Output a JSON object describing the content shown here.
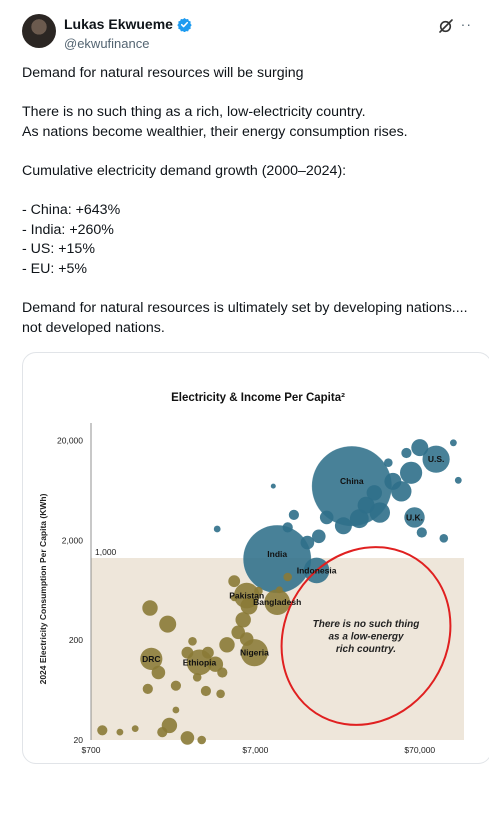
{
  "author": {
    "display_name": "Lukas Ekwueme",
    "handle": "@ekwufinance",
    "verified": true
  },
  "header_icons": [
    "grok-icon",
    "more-icon"
  ],
  "more_label": "··",
  "tweet": {
    "lines": [
      "Demand for natural resources will be surging",
      "",
      "There is no such thing as a rich, low-electricity country.",
      "As nations become wealthier, their energy consumption rises.",
      "",
      "Cumulative electricity demand growth (2000–2024):",
      "",
      "- China: +643%",
      "- India: +260%",
      "- US: +15%",
      "- EU: +5%",
      "",
      "Demand for natural resources is ultimately set by developing nations....",
      "not developed nations."
    ]
  },
  "chart_data": {
    "type": "scatter",
    "title": "Electricity & Income Per Capita²",
    "xlabel": "",
    "ylabel": "2024 Electricity Consumption  Per Capita (KWh)",
    "x_scale": "log",
    "y_scale": "log",
    "xlim": [
      700,
      130000
    ],
    "ylim": [
      20,
      30000
    ],
    "x_ticks": [
      {
        "value": 700,
        "label": "$700"
      },
      {
        "value": 7000,
        "label": "$7,000"
      },
      {
        "value": 70000,
        "label": "$70,000"
      }
    ],
    "y_ticks": [
      {
        "value": 20,
        "label": "20"
      },
      {
        "value": 200,
        "label": "200"
      },
      {
        "value": 2000,
        "label": "2,000"
      },
      {
        "value": 20000,
        "label": "20,000"
      }
    ],
    "shaded_region": {
      "x_from": 700,
      "x_to": 130000,
      "y_from": 20,
      "y_to": 1000,
      "label": "1,000"
    },
    "annotation": {
      "lines": [
        "There is no such thing",
        "as a low-energy",
        "rich country."
      ],
      "color": "#e02020"
    },
    "colors": {
      "developing": "#8a7a36",
      "developed": "#2f6f8a",
      "shade": "#eee6da"
    },
    "labeled_points": [
      {
        "label": "China",
        "x": 27000,
        "y": 7000,
        "size": 4.7
      },
      {
        "label": "India",
        "x": 9500,
        "y": 1300,
        "size": 4.0
      },
      {
        "label": "U.S.",
        "x": 88000,
        "y": 13000,
        "size": 1.6
      },
      {
        "label": "U.K.",
        "x": 65000,
        "y": 3400,
        "size": 1.2
      },
      {
        "label": "Indonesia",
        "x": 16500,
        "y": 1000,
        "size": 1.5
      },
      {
        "label": "Bangladesh",
        "x": 9500,
        "y": 480,
        "size": 1.5
      },
      {
        "label": "Pakistan",
        "x": 6200,
        "y": 560,
        "size": 1.5
      },
      {
        "label": "Nigeria",
        "x": 6900,
        "y": 150,
        "size": 1.6
      },
      {
        "label": "Ethiopia",
        "x": 3200,
        "y": 120,
        "size": 1.5
      },
      {
        "label": "DRC",
        "x": 1630,
        "y": 130,
        "size": 1.3
      }
    ],
    "other_points": [
      {
        "x": 62000,
        "y": 9500,
        "size": 1.3
      },
      {
        "x": 48000,
        "y": 7800,
        "size": 1.0
      },
      {
        "x": 54000,
        "y": 6200,
        "size": 1.2
      },
      {
        "x": 40000,
        "y": 3800,
        "size": 1.2
      },
      {
        "x": 33000,
        "y": 4500,
        "size": 1.0
      },
      {
        "x": 30000,
        "y": 3300,
        "size": 1.1
      },
      {
        "x": 24000,
        "y": 2800,
        "size": 1.0
      },
      {
        "x": 19000,
        "y": 3400,
        "size": 0.8
      },
      {
        "x": 17000,
        "y": 2200,
        "size": 0.8
      },
      {
        "x": 14500,
        "y": 1900,
        "size": 0.8
      },
      {
        "x": 12000,
        "y": 3600,
        "size": 0.6
      },
      {
        "x": 11000,
        "y": 2700,
        "size": 0.6
      },
      {
        "x": 72000,
        "y": 2400,
        "size": 0.6
      },
      {
        "x": 98000,
        "y": 2100,
        "size": 0.5
      },
      {
        "x": 70000,
        "y": 17000,
        "size": 1.0
      },
      {
        "x": 58000,
        "y": 15000,
        "size": 0.6
      },
      {
        "x": 37000,
        "y": 6000,
        "size": 0.9
      },
      {
        "x": 45000,
        "y": 12000,
        "size": 0.5
      },
      {
        "x": 9000,
        "y": 7000,
        "size": 0.3
      },
      {
        "x": 120000,
        "y": 8000,
        "size": 0.4
      },
      {
        "x": 112000,
        "y": 19000,
        "size": 0.4
      },
      {
        "x": 4100,
        "y": 2600,
        "size": 0.4
      },
      {
        "x": 5200,
        "y": 780,
        "size": 0.7
      },
      {
        "x": 6400,
        "y": 440,
        "size": 1.0
      },
      {
        "x": 5900,
        "y": 320,
        "size": 0.9
      },
      {
        "x": 5500,
        "y": 240,
        "size": 0.8
      },
      {
        "x": 4700,
        "y": 180,
        "size": 0.9
      },
      {
        "x": 6200,
        "y": 205,
        "size": 0.8
      },
      {
        "x": 4000,
        "y": 115,
        "size": 0.9
      },
      {
        "x": 3600,
        "y": 150,
        "size": 0.7
      },
      {
        "x": 4400,
        "y": 95,
        "size": 0.6
      },
      {
        "x": 3100,
        "y": 85,
        "size": 0.5
      },
      {
        "x": 2700,
        "y": 150,
        "size": 0.7
      },
      {
        "x": 1800,
        "y": 95,
        "size": 0.8
      },
      {
        "x": 2300,
        "y": 70,
        "size": 0.6
      },
      {
        "x": 1600,
        "y": 420,
        "size": 0.9
      },
      {
        "x": 2050,
        "y": 290,
        "size": 1.0
      },
      {
        "x": 1550,
        "y": 65,
        "size": 0.6
      },
      {
        "x": 3500,
        "y": 62,
        "size": 0.6
      },
      {
        "x": 4300,
        "y": 58,
        "size": 0.5
      },
      {
        "x": 2900,
        "y": 195,
        "size": 0.5
      },
      {
        "x": 2100,
        "y": 28,
        "size": 0.9
      },
      {
        "x": 1900,
        "y": 24,
        "size": 0.6
      },
      {
        "x": 2700,
        "y": 21,
        "size": 0.8
      },
      {
        "x": 3300,
        "y": 20,
        "size": 0.5
      },
      {
        "x": 820,
        "y": 25,
        "size": 0.6
      },
      {
        "x": 1050,
        "y": 24,
        "size": 0.4
      },
      {
        "x": 1300,
        "y": 26,
        "size": 0.4
      },
      {
        "x": 2300,
        "y": 40,
        "size": 0.4
      },
      {
        "x": 7300,
        "y": 620,
        "size": 0.5
      },
      {
        "x": 5200,
        "y": 530,
        "size": 0.4
      },
      {
        "x": 11000,
        "y": 860,
        "size": 0.5
      },
      {
        "x": 9800,
        "y": 640,
        "size": 0.4
      }
    ]
  }
}
